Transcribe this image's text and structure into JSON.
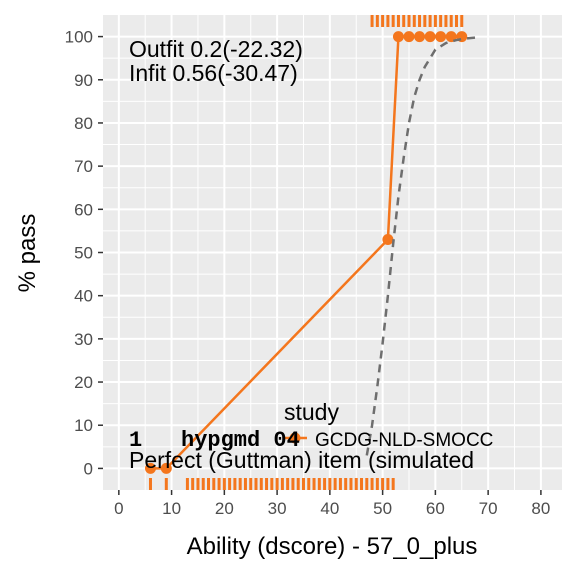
{
  "chart_data": {
    "type": "line",
    "xlabel": "Ability (dscore) - 57_0_plus",
    "ylabel": "% pass",
    "xlim": [
      -3,
      84
    ],
    "ylim": [
      -5,
      105
    ],
    "x_ticks": [
      0,
      10,
      20,
      30,
      40,
      50,
      60,
      70,
      80
    ],
    "y_ticks": [
      0,
      10,
      20,
      30,
      40,
      50,
      60,
      70,
      80,
      90,
      100
    ],
    "grid": true,
    "colors": {
      "panel": "#ebebeb",
      "grid": "#ffffff",
      "observed": "#f4761d",
      "expected": "#6e6e6e"
    },
    "annotations": {
      "outfit": "Outfit 0.2(-22.32)",
      "infit": "Infit  0.56(-30.47)",
      "item_index": "1",
      "item_code": "hypgmd 04",
      "perfect": "Perfect (Guttman) item (simulated"
    },
    "legend": {
      "title": "study",
      "entries": [
        "GCDG-NLD-SMOCC"
      ],
      "placement": "bottom-center"
    },
    "series": [
      {
        "name": "GCDG-NLD-SMOCC",
        "kind": "observed",
        "x": [
          6,
          9,
          51,
          53,
          55,
          57,
          59,
          61,
          63,
          65
        ],
        "y": [
          0,
          0,
          53,
          100,
          100,
          100,
          100,
          100,
          100,
          100
        ]
      },
      {
        "kind": "expected",
        "x": [
          47,
          48,
          49,
          50,
          51,
          52,
          53,
          54,
          55,
          56,
          57,
          58,
          59,
          60,
          62,
          64,
          66,
          68
        ],
        "y": [
          3,
          10,
          19,
          29,
          40,
          52,
          63,
          72,
          80,
          86,
          90,
          93,
          95,
          97,
          98.5,
          99.2,
          99.6,
          99.8
        ]
      }
    ],
    "rug": {
      "fail_x": [
        6,
        9,
        13,
        14,
        15,
        16,
        17,
        18,
        19,
        20,
        21,
        22,
        23,
        24,
        25,
        26,
        27,
        28,
        29,
        30,
        31,
        32,
        33,
        34,
        35,
        36,
        37,
        38,
        39,
        40,
        41,
        42,
        43,
        44,
        45,
        46,
        47,
        48,
        49,
        50,
        51,
        52
      ],
      "pass_x": [
        48,
        49,
        50,
        51,
        52,
        53,
        54,
        55,
        56,
        57,
        58,
        59,
        60,
        61,
        62,
        63,
        64,
        65
      ]
    }
  }
}
